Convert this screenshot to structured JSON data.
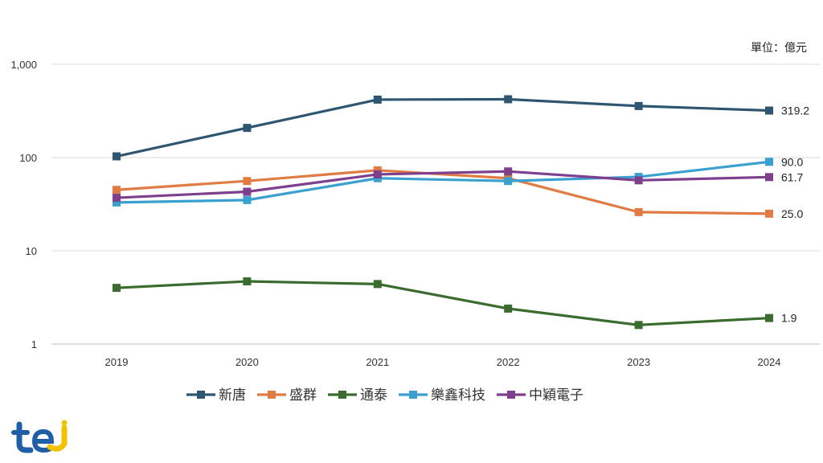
{
  "chart_data": {
    "type": "line",
    "yscale": "log",
    "unit_label": "單位：億元",
    "categories": [
      "2019",
      "2020",
      "2021",
      "2022",
      "2023",
      "2024"
    ],
    "yticks": [
      1,
      10,
      100,
      1000
    ],
    "ytick_labels": [
      "1",
      "10",
      "100",
      "1,000"
    ],
    "ylim": [
      1,
      1000
    ],
    "grid": true,
    "legend_position": "bottom",
    "series": [
      {
        "name": "新唐",
        "color": "#2f5670",
        "values": [
          103,
          208,
          418,
          422,
          357,
          319.2
        ],
        "end_label": "319.2"
      },
      {
        "name": "盛群",
        "color": "#e07b44",
        "values": [
          45,
          56,
          73,
          60,
          26,
          25.0
        ],
        "end_label": "25.0"
      },
      {
        "name": "通泰",
        "color": "#3a6b2f",
        "values": [
          4.0,
          4.7,
          4.4,
          2.4,
          1.6,
          1.9
        ],
        "end_label": "1.9"
      },
      {
        "name": "樂鑫科技",
        "color": "#3aa0cf",
        "values": [
          33,
          35,
          60,
          56,
          62,
          90.0
        ],
        "end_label": "90.0"
      },
      {
        "name": "中穎電子",
        "color": "#7e3f8f",
        "values": [
          37,
          43,
          66,
          71,
          57,
          61.7
        ],
        "end_label": "61.7"
      }
    ]
  },
  "logo": {
    "name": "tej-logo-icon",
    "text": "tej",
    "colors": [
      "#1f5fa8",
      "#f2c200"
    ]
  }
}
